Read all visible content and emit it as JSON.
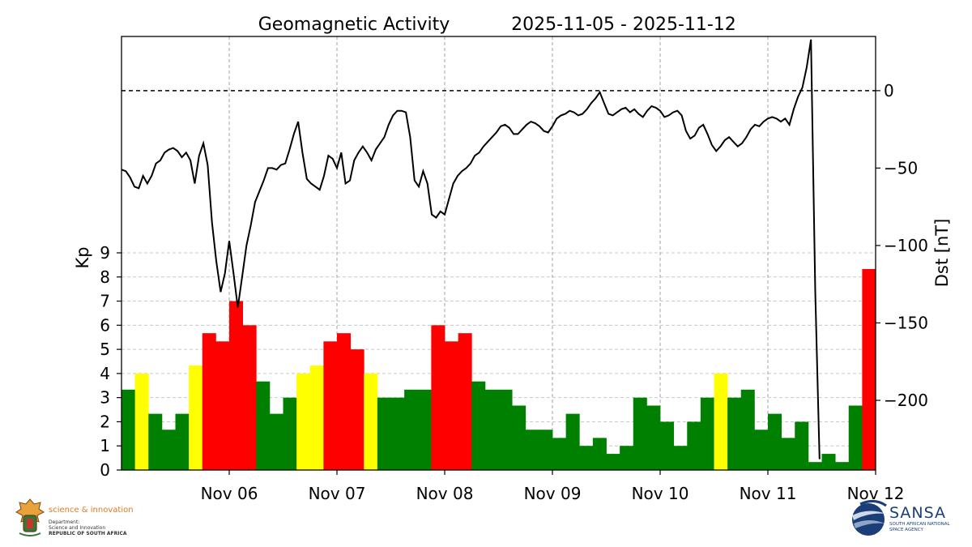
{
  "chart_data": {
    "type": "bar+line",
    "title": "Geomagnetic Activity",
    "date_range": "2025-11-05 - 2025-11-12",
    "ylabel_left": "Kp",
    "ylabel_right": "Dst [nT]",
    "kp_axis": {
      "ylim": [
        0,
        9
      ],
      "ticks": [
        "0",
        "1",
        "2",
        "3",
        "4",
        "5",
        "6",
        "7",
        "8",
        "9"
      ]
    },
    "dst_axis": {
      "ylim": [
        -245,
        35
      ],
      "ticks": [
        0,
        -50,
        -100,
        -150,
        -200
      ],
      "tick_labels": [
        "0",
        "−50",
        "−100",
        "−150",
        "−200"
      ]
    },
    "x_range_days": [
      0,
      7
    ],
    "x_tick_labels": [
      "Nov 06",
      "Nov 07",
      "Nov 08",
      "Nov 09",
      "Nov 10",
      "Nov 11",
      "Nov 12"
    ],
    "dst_reference_line": 0,
    "grid": true,
    "kp_colors": {
      "quiet": "#008000",
      "active": "#ffff00",
      "storm": "#ff0000"
    },
    "kp_values": [
      3.33,
      4.0,
      2.33,
      1.67,
      2.33,
      4.33,
      5.67,
      5.33,
      7.0,
      6.0,
      3.67,
      2.33,
      3.0,
      4.0,
      4.33,
      5.33,
      5.67,
      5.0,
      4.0,
      3.0,
      3.0,
      3.33,
      3.33,
      6.0,
      5.33,
      5.67,
      3.67,
      3.33,
      3.33,
      2.67,
      1.67,
      1.67,
      1.33,
      2.33,
      1.0,
      1.33,
      0.67,
      1.0,
      3.0,
      2.67,
      2.0,
      1.0,
      2.0,
      3.0,
      4.0,
      3.0,
      3.33,
      1.67,
      2.33,
      1.33,
      2.0,
      0.33,
      0.67,
      0.33,
      2.67,
      8.33
    ],
    "dst_points": [
      [
        0.0,
        -51
      ],
      [
        0.04,
        -52
      ],
      [
        0.08,
        -56
      ],
      [
        0.12,
        -62
      ],
      [
        0.16,
        -63
      ],
      [
        0.2,
        -55
      ],
      [
        0.24,
        -60
      ],
      [
        0.28,
        -55
      ],
      [
        0.32,
        -47
      ],
      [
        0.36,
        -45
      ],
      [
        0.4,
        -40
      ],
      [
        0.44,
        -38
      ],
      [
        0.48,
        -37
      ],
      [
        0.52,
        -39
      ],
      [
        0.56,
        -43
      ],
      [
        0.6,
        -40
      ],
      [
        0.64,
        -45
      ],
      [
        0.68,
        -60
      ],
      [
        0.72,
        -42
      ],
      [
        0.76,
        -34
      ],
      [
        0.8,
        -48
      ],
      [
        0.84,
        -85
      ],
      [
        0.88,
        -110
      ],
      [
        0.92,
        -130
      ],
      [
        0.96,
        -118
      ],
      [
        1.0,
        -97
      ],
      [
        1.04,
        -118
      ],
      [
        1.08,
        -140
      ],
      [
        1.12,
        -120
      ],
      [
        1.16,
        -100
      ],
      [
        1.2,
        -87
      ],
      [
        1.24,
        -72
      ],
      [
        1.28,
        -65
      ],
      [
        1.32,
        -58
      ],
      [
        1.36,
        -50
      ],
      [
        1.4,
        -50
      ],
      [
        1.44,
        -51
      ],
      [
        1.48,
        -48
      ],
      [
        1.52,
        -47
      ],
      [
        1.56,
        -38
      ],
      [
        1.6,
        -28
      ],
      [
        1.64,
        -20
      ],
      [
        1.68,
        -40
      ],
      [
        1.72,
        -57
      ],
      [
        1.76,
        -60
      ],
      [
        1.8,
        -62
      ],
      [
        1.84,
        -64
      ],
      [
        1.88,
        -55
      ],
      [
        1.92,
        -42
      ],
      [
        1.96,
        -44
      ],
      [
        2.0,
        -50
      ],
      [
        2.04,
        -40
      ],
      [
        2.08,
        -60
      ],
      [
        2.12,
        -58
      ],
      [
        2.16,
        -45
      ],
      [
        2.2,
        -40
      ],
      [
        2.24,
        -36
      ],
      [
        2.28,
        -40
      ],
      [
        2.32,
        -45
      ],
      [
        2.36,
        -38
      ],
      [
        2.4,
        -34
      ],
      [
        2.44,
        -30
      ],
      [
        2.48,
        -22
      ],
      [
        2.52,
        -16
      ],
      [
        2.56,
        -13
      ],
      [
        2.6,
        -13
      ],
      [
        2.64,
        -14
      ],
      [
        2.68,
        -30
      ],
      [
        2.72,
        -58
      ],
      [
        2.76,
        -62
      ],
      [
        2.8,
        -52
      ],
      [
        2.84,
        -60
      ],
      [
        2.88,
        -80
      ],
      [
        2.92,
        -82
      ],
      [
        2.96,
        -78
      ],
      [
        3.0,
        -80
      ],
      [
        3.04,
        -70
      ],
      [
        3.08,
        -60
      ],
      [
        3.12,
        -55
      ],
      [
        3.16,
        -52
      ],
      [
        3.2,
        -50
      ],
      [
        3.24,
        -47
      ],
      [
        3.28,
        -42
      ],
      [
        3.32,
        -40
      ],
      [
        3.36,
        -36
      ],
      [
        3.4,
        -33
      ],
      [
        3.44,
        -30
      ],
      [
        3.48,
        -27
      ],
      [
        3.52,
        -23
      ],
      [
        3.56,
        -22
      ],
      [
        3.6,
        -24
      ],
      [
        3.64,
        -28
      ],
      [
        3.68,
        -28
      ],
      [
        3.72,
        -25
      ],
      [
        3.76,
        -22
      ],
      [
        3.8,
        -20
      ],
      [
        3.84,
        -21
      ],
      [
        3.88,
        -23
      ],
      [
        3.92,
        -26
      ],
      [
        3.96,
        -27
      ],
      [
        4.0,
        -23
      ],
      [
        4.04,
        -18
      ],
      [
        4.08,
        -16
      ],
      [
        4.12,
        -15
      ],
      [
        4.16,
        -13
      ],
      [
        4.2,
        -14
      ],
      [
        4.24,
        -16
      ],
      [
        4.28,
        -15
      ],
      [
        4.32,
        -12
      ],
      [
        4.36,
        -8
      ],
      [
        4.4,
        -5
      ],
      [
        4.44,
        -1
      ],
      [
        4.48,
        -8
      ],
      [
        4.52,
        -15
      ],
      [
        4.56,
        -16
      ],
      [
        4.6,
        -14
      ],
      [
        4.64,
        -12
      ],
      [
        4.68,
        -11
      ],
      [
        4.72,
        -14
      ],
      [
        4.76,
        -12
      ],
      [
        4.8,
        -15
      ],
      [
        4.84,
        -17
      ],
      [
        4.88,
        -13
      ],
      [
        4.92,
        -10
      ],
      [
        4.96,
        -11
      ],
      [
        5.0,
        -13
      ],
      [
        5.04,
        -17
      ],
      [
        5.08,
        -16
      ],
      [
        5.12,
        -14
      ],
      [
        5.16,
        -13
      ],
      [
        5.2,
        -16
      ],
      [
        5.24,
        -26
      ],
      [
        5.28,
        -31
      ],
      [
        5.32,
        -29
      ],
      [
        5.36,
        -24
      ],
      [
        5.4,
        -22
      ],
      [
        5.44,
        -28
      ],
      [
        5.48,
        -35
      ],
      [
        5.52,
        -39
      ],
      [
        5.56,
        -36
      ],
      [
        5.6,
        -32
      ],
      [
        5.64,
        -30
      ],
      [
        5.68,
        -33
      ],
      [
        5.72,
        -36
      ],
      [
        5.76,
        -34
      ],
      [
        5.8,
        -30
      ],
      [
        5.84,
        -25
      ],
      [
        5.88,
        -22
      ],
      [
        5.92,
        -23
      ],
      [
        5.96,
        -20
      ],
      [
        6.0,
        -18
      ],
      [
        6.04,
        -17
      ],
      [
        6.08,
        -18
      ],
      [
        6.12,
        -20
      ],
      [
        6.16,
        -18
      ],
      [
        6.2,
        -22
      ],
      [
        6.24,
        -12
      ],
      [
        6.28,
        -4
      ],
      [
        6.32,
        2
      ],
      [
        6.36,
        15
      ],
      [
        6.4,
        33
      ],
      [
        6.44,
        -130
      ],
      [
        6.48,
        -238
      ]
    ]
  },
  "logos": {
    "left": {
      "name": "science & innovation",
      "lines": [
        "Department:",
        "Science and Innovation",
        "REPUBLIC OF SOUTH AFRICA"
      ]
    },
    "right": {
      "name": "SANSA",
      "lines": [
        "SOUTH AFRICAN NATIONAL",
        "SPACE AGENCY"
      ]
    }
  }
}
